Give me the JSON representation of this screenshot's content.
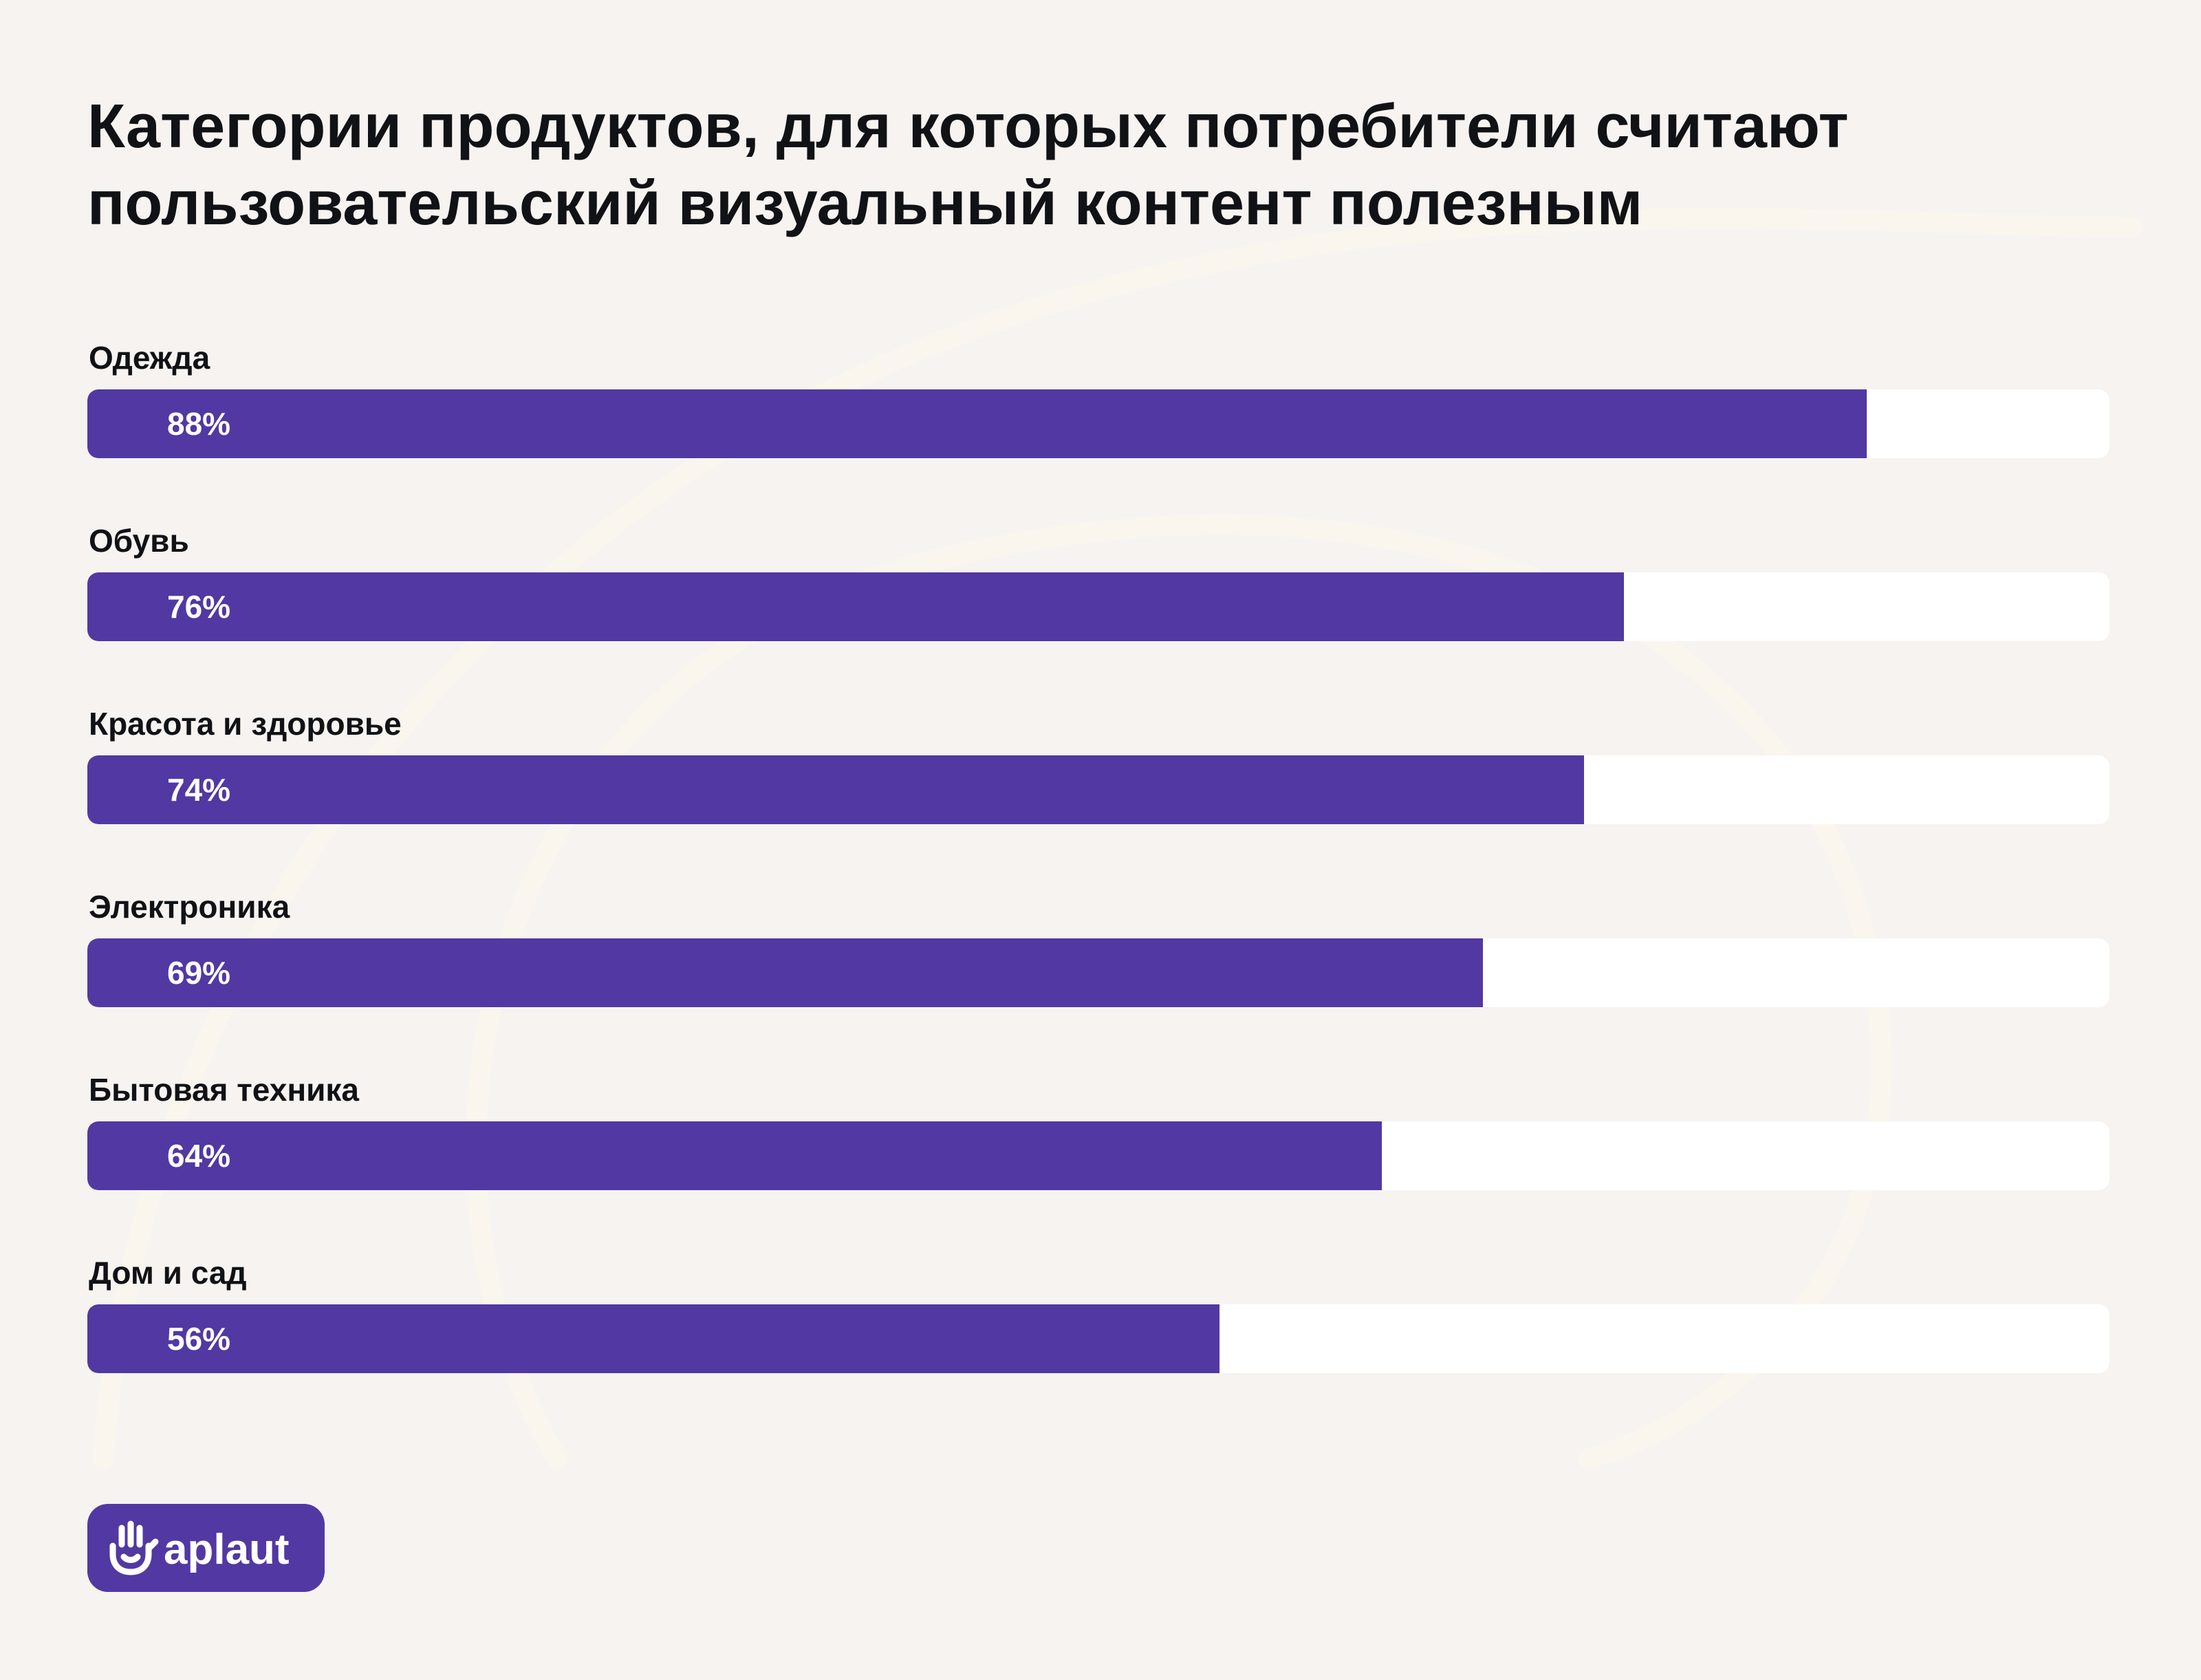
{
  "title_lines": [
    "Категории продуктов, для которых потребители считают",
    "пользовательский визуальный контент полезным"
  ],
  "brand": {
    "name": "aplaut",
    "accent_color": "#5238a2",
    "logo_icon": "clapping-hand-icon"
  },
  "colors": {
    "background": "#f6f3f0",
    "bar_fill": "#5238a2",
    "bar_track": "#ffffff",
    "text": "#101216"
  },
  "chart_data": {
    "type": "bar",
    "orientation": "horizontal",
    "title": "Категории продуктов, для которых потребители считают пользовательский визуальный контент полезным",
    "categories": [
      "Одежда",
      "Обувь",
      "Красота и здоровье",
      "Электроника",
      "Бытовая техника",
      "Дом и сад"
    ],
    "values": [
      88,
      76,
      74,
      69,
      64,
      56
    ],
    "value_labels": [
      "88%",
      "76%",
      "74%",
      "69%",
      "64%",
      "56%"
    ],
    "xlim": [
      0,
      100
    ],
    "grid": false,
    "legend": "none"
  }
}
